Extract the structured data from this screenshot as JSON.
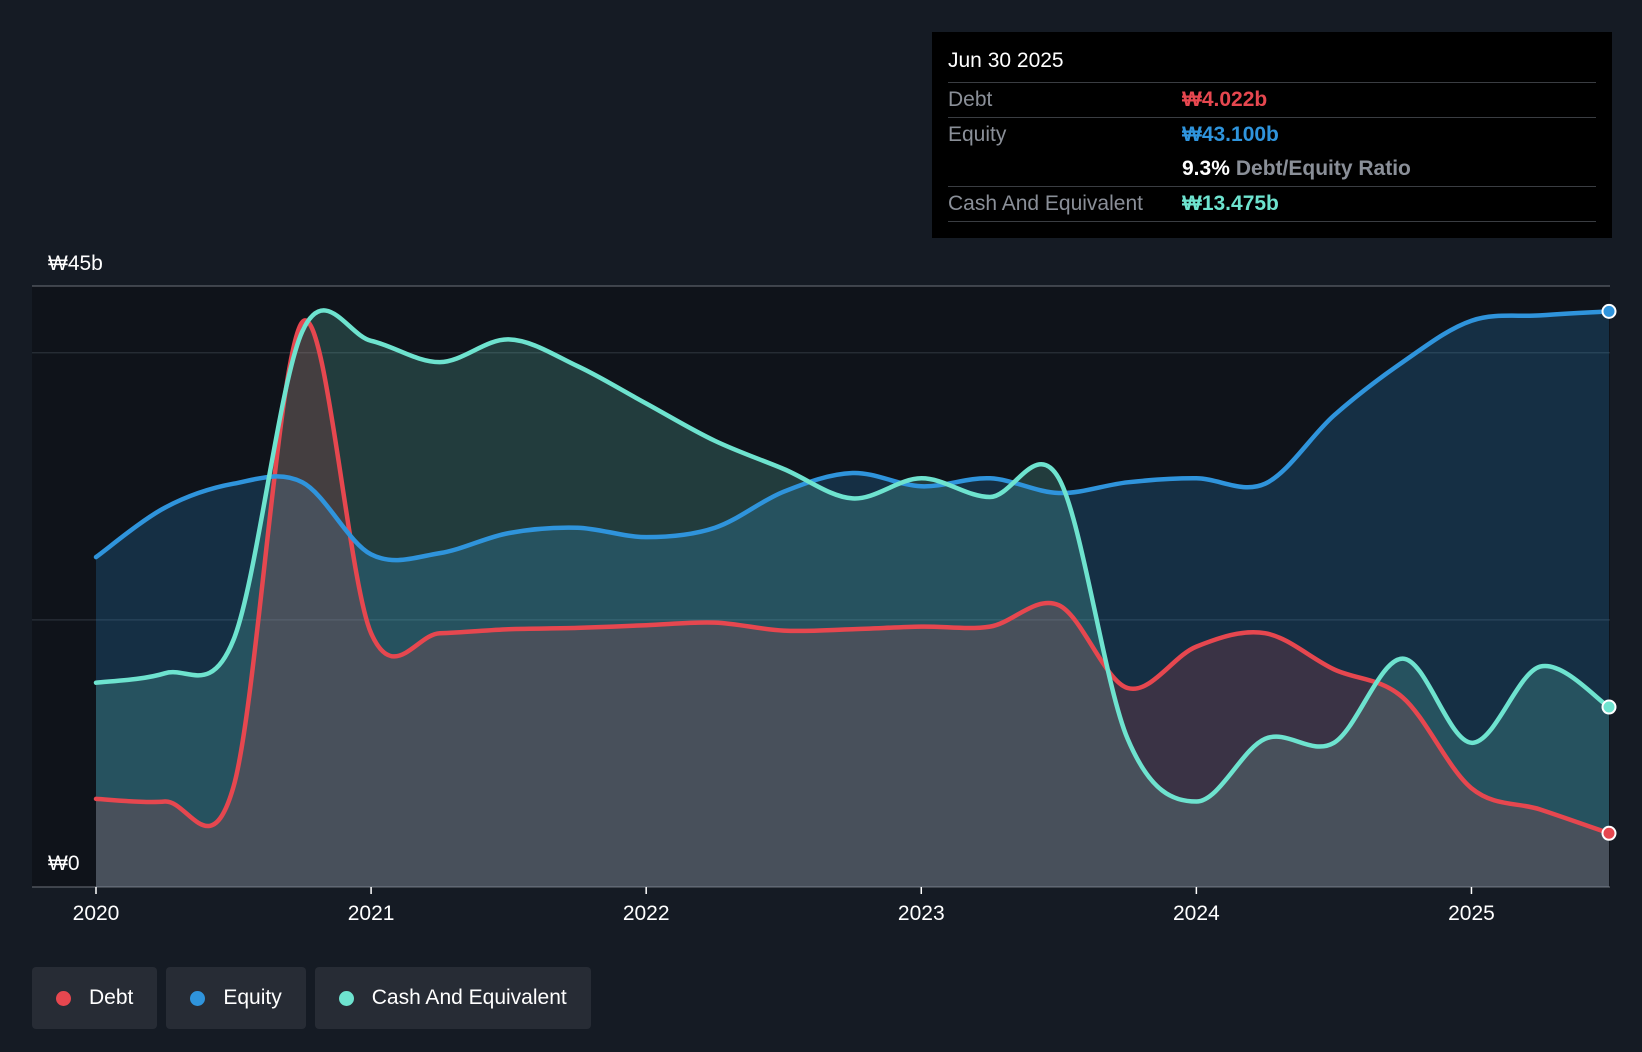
{
  "tooltip": {
    "date": "Jun 30 2025",
    "debt_label": "Debt",
    "debt_value": "₩4.022b",
    "equity_label": "Equity",
    "equity_value": "₩43.100b",
    "ratio_value": "9.3%",
    "ratio_label": "Debt/Equity Ratio",
    "cash_label": "Cash And Equivalent",
    "cash_value": "₩13.475b"
  },
  "legend": [
    {
      "label": "Debt",
      "color": "#e6474f"
    },
    {
      "label": "Equity",
      "color": "#2f94dc"
    },
    {
      "label": "Cash And Equivalent",
      "color": "#6ee3cf"
    }
  ],
  "chart_data": {
    "type": "area",
    "title": "",
    "ylabel": "",
    "xlabel": "",
    "y_top_label": "₩45b",
    "y_bottom_label": "₩0",
    "ylim": [
      0,
      45
    ],
    "xlim": [
      2020.0,
      2025.5
    ],
    "x_ticks": [
      2020,
      2021,
      2022,
      2023,
      2024,
      2025
    ],
    "x_tick_labels": [
      "2020",
      "2021",
      "2022",
      "2023",
      "2024",
      "2025"
    ],
    "y_grid": [
      0,
      20,
      40,
      45
    ],
    "colors": {
      "debt": "#e6474f",
      "equity": "#2f94dc",
      "cash": "#6ee3cf"
    },
    "series": [
      {
        "name": "Debt",
        "key": "debt",
        "x": [
          2020.0,
          2020.25,
          2020.5,
          2020.75,
          2021.0,
          2021.25,
          2021.5,
          2021.75,
          2022.0,
          2022.25,
          2022.5,
          2022.75,
          2023.0,
          2023.25,
          2023.5,
          2023.75,
          2024.0,
          2024.25,
          2024.5,
          2024.75,
          2025.0,
          2025.25,
          2025.5
        ],
        "values": [
          6.6,
          6.4,
          7.5,
          42.3,
          19.0,
          19.0,
          19.3,
          19.4,
          19.6,
          19.8,
          19.2,
          19.3,
          19.5,
          19.5,
          21.1,
          14.9,
          18.0,
          19.0,
          16.3,
          14.2,
          7.4,
          5.8,
          4.022
        ]
      },
      {
        "name": "Equity",
        "key": "equity",
        "x": [
          2020.0,
          2020.25,
          2020.5,
          2020.75,
          2021.0,
          2021.25,
          2021.5,
          2021.75,
          2022.0,
          2022.25,
          2022.5,
          2022.75,
          2023.0,
          2023.25,
          2023.5,
          2023.75,
          2024.0,
          2024.25,
          2024.5,
          2024.75,
          2025.0,
          2025.25,
          2025.5
        ],
        "values": [
          24.7,
          28.4,
          30.2,
          30.3,
          24.9,
          25.0,
          26.5,
          26.9,
          26.2,
          26.9,
          29.6,
          31.0,
          30.0,
          30.6,
          29.5,
          30.3,
          30.6,
          30.2,
          35.3,
          39.3,
          42.4,
          42.8,
          43.1
        ]
      },
      {
        "name": "Cash And Equivalent",
        "key": "cash",
        "x": [
          2020.0,
          2020.25,
          2020.5,
          2020.75,
          2021.0,
          2021.25,
          2021.5,
          2021.75,
          2022.0,
          2022.25,
          2022.5,
          2022.75,
          2023.0,
          2023.25,
          2023.5,
          2023.75,
          2024.0,
          2024.25,
          2024.5,
          2024.75,
          2025.0,
          2025.25,
          2025.5
        ],
        "values": [
          15.3,
          16.0,
          18.5,
          41.6,
          40.9,
          39.3,
          41.0,
          39.0,
          36.2,
          33.4,
          31.3,
          29.1,
          30.6,
          29.2,
          30.6,
          11.1,
          6.4,
          11.1,
          10.8,
          17.1,
          10.8,
          16.5,
          13.475
        ]
      }
    ]
  }
}
